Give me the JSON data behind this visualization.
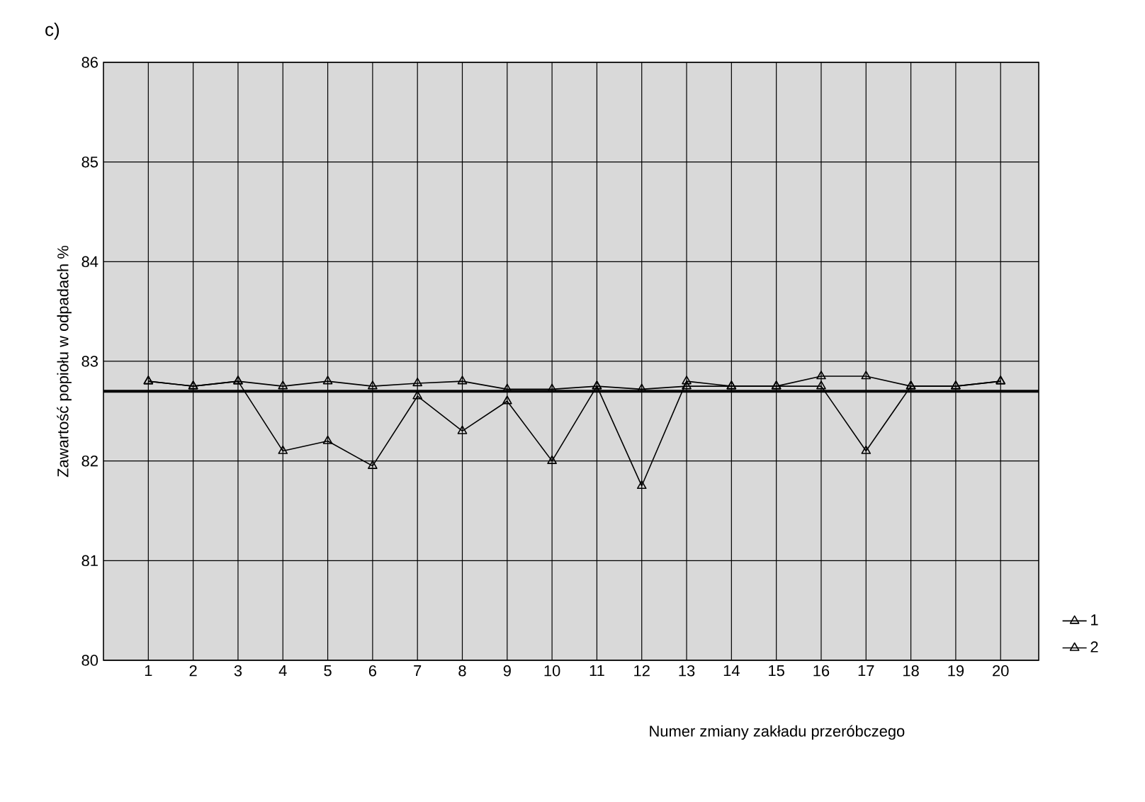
{
  "chart_data": {
    "type": "line",
    "title": "c)",
    "xlabel": "Numer zmiany zakładu przeróbczego",
    "ylabel": "Zawartość popiołu w odpadach  %",
    "x": [
      1,
      2,
      3,
      4,
      5,
      6,
      7,
      8,
      9,
      10,
      11,
      12,
      13,
      14,
      15,
      16,
      17,
      18,
      19,
      20
    ],
    "series": [
      {
        "name": "1",
        "color": "#000000",
        "values": [
          82.8,
          82.75,
          82.8,
          82.1,
          82.2,
          81.95,
          82.65,
          82.3,
          82.6,
          82.0,
          82.75,
          81.75,
          82.8,
          82.75,
          82.75,
          82.75,
          82.1,
          82.75,
          82.75,
          82.8
        ]
      },
      {
        "name": "2",
        "color": "#000000",
        "values": [
          82.8,
          82.75,
          82.8,
          82.75,
          82.8,
          82.75,
          82.78,
          82.8,
          82.72,
          82.72,
          82.75,
          82.72,
          82.75,
          82.75,
          82.75,
          82.85,
          82.85,
          82.75,
          82.75,
          82.8
        ]
      }
    ],
    "ref_lines": [
      {
        "axis": "y",
        "value": 82.7,
        "color": "#000000"
      }
    ],
    "xlim": [
      0,
      20.85
    ],
    "ylim": [
      80,
      86
    ],
    "xticks": [
      1,
      2,
      3,
      4,
      5,
      6,
      7,
      8,
      9,
      10,
      11,
      12,
      13,
      14,
      15,
      16,
      17,
      18,
      19,
      20
    ],
    "yticks": [
      80,
      81,
      82,
      83,
      84,
      85,
      86
    ],
    "grid": true,
    "legend": "bottom right",
    "marker": "triangle",
    "line_style": "solid"
  }
}
